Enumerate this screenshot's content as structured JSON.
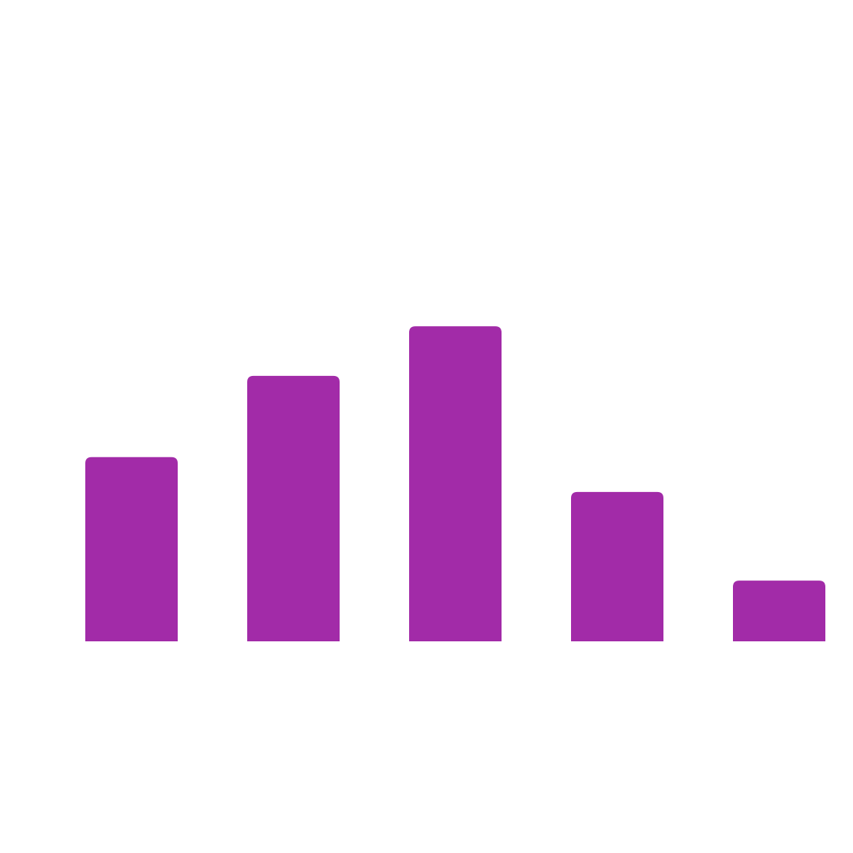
{
  "chart_data": {
    "type": "bar",
    "categories": [
      "",
      "",
      "",
      "",
      ""
    ],
    "values": [
      4.76,
      6.86,
      8.14,
      3.86,
      1.57
    ],
    "ylim": [
      0,
      10
    ],
    "grid": false,
    "legend": "none",
    "colors": {
      "bar": "#a22ba8",
      "background": "#ffffff"
    }
  }
}
